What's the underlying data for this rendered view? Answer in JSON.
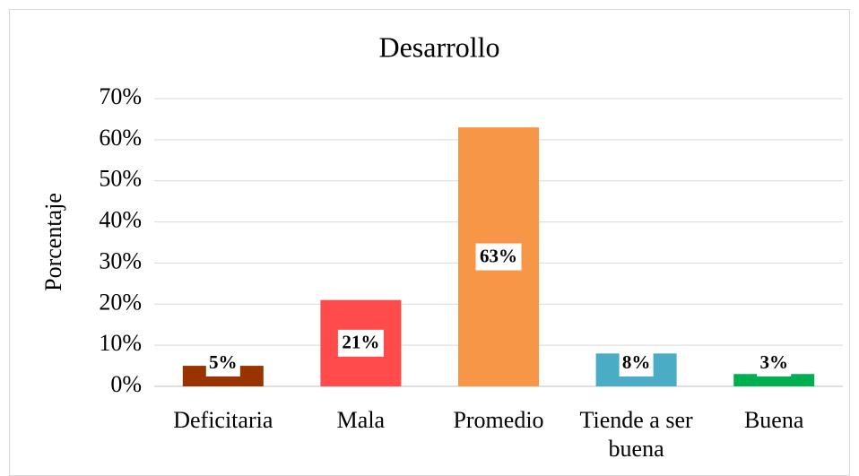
{
  "chart_data": {
    "type": "bar",
    "title": "Desarrollo",
    "y_label": "Porcentaje",
    "categories": [
      "Deficitaria",
      "Mala",
      "Promedio",
      "Tiende a ser buena",
      "Buena"
    ],
    "values": [
      5,
      21,
      63,
      8,
      3
    ],
    "value_labels": [
      "5%",
      "21%",
      "63%",
      "8%",
      "3%"
    ],
    "colors": [
      "#993300",
      "#ff4b4b",
      "#f79646",
      "#4bacc6",
      "#00b050"
    ],
    "ylim": [
      0,
      70
    ],
    "yticks": [
      {
        "value": 0,
        "label": "0%"
      },
      {
        "value": 10,
        "label": "10%"
      },
      {
        "value": 20,
        "label": "20%"
      },
      {
        "value": 30,
        "label": "30%"
      },
      {
        "value": 40,
        "label": "40%"
      },
      {
        "value": 50,
        "label": "50%"
      },
      {
        "value": 60,
        "label": "60%"
      },
      {
        "value": 70,
        "label": "70%"
      }
    ],
    "grid": true
  }
}
